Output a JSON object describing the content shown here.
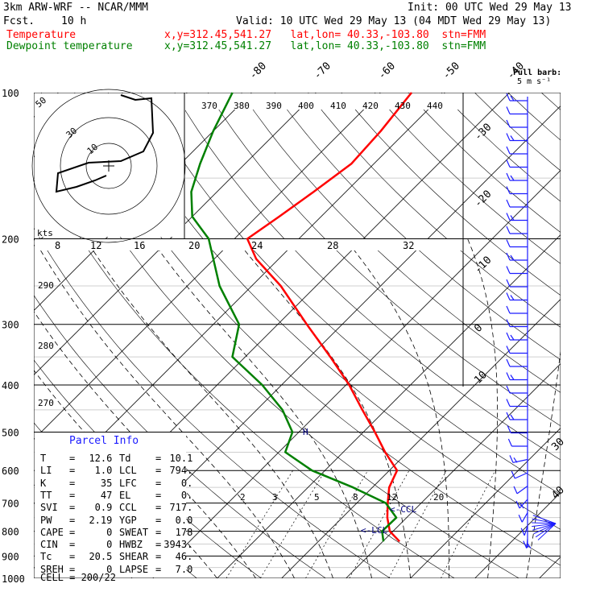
{
  "header": {
    "model": "3km ARW-WRF -- NCAR/MMM",
    "fcst_label": "Fcst.",
    "fcst_value": "10 h",
    "init": "Init: 00 UTC Wed 29 May 13",
    "valid": "Valid: 10 UTC Wed 29 May 13 (04 MDT Wed 29 May 13)",
    "temp_label": "Temperature",
    "dew_label": "Dewpoint temperature",
    "temp_loc": "x,y=312.45,541.27   lat,lon= 40.33,-103.80  stn=FMM",
    "dew_loc": "x,y=312.45,541.27   lat,lon= 40.33,-103.80  stn=FMM"
  },
  "barb_legend": {
    "line1": "Full barb:",
    "line2": "5 m s⁻¹"
  },
  "parcel": {
    "title": "Parcel Info",
    "rows": [
      {
        "l1": "T",
        "v1": "12.6",
        "l2": "Td",
        "v2": "10.1"
      },
      {
        "l1": "LI",
        "v1": "1.0",
        "l2": "LCL",
        "v2": "794."
      },
      {
        "l1": "K",
        "v1": "35",
        "l2": "LFC",
        "v2": "0."
      },
      {
        "l1": "TT",
        "v1": "47",
        "l2": "EL",
        "v2": "0."
      },
      {
        "l1": "SVI",
        "v1": "0.9",
        "l2": "CCL",
        "v2": "717."
      },
      {
        "l1": "PW",
        "v1": "2.19",
        "l2": "YGP",
        "v2": "0.0"
      },
      {
        "l1": "CAPE",
        "v1": "0",
        "l2": "SWEAT",
        "v2": "178"
      },
      {
        "l1": "CIN",
        "v1": "0",
        "l2": "HWBZ",
        "v2": "3943."
      },
      {
        "l1": "Tc",
        "v1": "20.5",
        "l2": "SHEAR",
        "v2": "46."
      },
      {
        "l1": "SREH",
        "v1": "0",
        "l2": "LAPSE",
        "v2": "7.0"
      }
    ],
    "cell": "CELL = 200/22"
  },
  "chart_data": {
    "type": "line",
    "ylabel": "",
    "xlabel": "",
    "yscale": "log",
    "pressure_ticks": [
      100,
      200,
      300,
      400,
      500,
      600,
      700,
      800,
      900,
      1000
    ],
    "ylim": [
      1000,
      100
    ],
    "isotherm_labels": [
      -80,
      -70,
      -60,
      -50,
      -40,
      -30,
      -20,
      -10,
      0,
      10,
      20,
      30,
      40
    ],
    "theta_labels": [
      370,
      380,
      390,
      400,
      410,
      420,
      430,
      440
    ],
    "thetae_labels": [
      290,
      280,
      270
    ],
    "mixing_ratio_upper_labels": [
      "8",
      "12",
      "16",
      "20",
      "24",
      "28",
      "32"
    ],
    "mixing_ratio_lower_labels": [
      "2",
      "3",
      "5",
      "8",
      "12",
      "20"
    ],
    "hodograph": {
      "units_label": "kts",
      "ring_labels": [
        "10",
        "30",
        "50"
      ]
    },
    "annotations": [
      "CCL",
      "LCL",
      "H"
    ],
    "series": [
      {
        "name": "Temperature",
        "color": "#ff0000",
        "points": [
          [
            840,
            12.6
          ],
          [
            800,
            9.5
          ],
          [
            750,
            7.0
          ],
          [
            700,
            4.8
          ],
          [
            650,
            2.6
          ],
          [
            600,
            1.2
          ],
          [
            550,
            -3.5
          ],
          [
            500,
            -8.2
          ],
          [
            450,
            -13.6
          ],
          [
            400,
            -19.5
          ],
          [
            350,
            -26.8
          ],
          [
            300,
            -35.5
          ],
          [
            250,
            -45.5
          ],
          [
            220,
            -53.5
          ],
          [
            200,
            -58
          ],
          [
            180,
            -56.5
          ],
          [
            160,
            -55
          ],
          [
            140,
            -53.5
          ],
          [
            120,
            -54
          ],
          [
            100,
            -55.2
          ]
        ]
      },
      {
        "name": "Dewpoint temperature",
        "color": "#008000",
        "points": [
          [
            840,
            10.1
          ],
          [
            800,
            8.3
          ],
          [
            750,
            8.4
          ],
          [
            700,
            4.5
          ],
          [
            650,
            -3
          ],
          [
            600,
            -12
          ],
          [
            550,
            -19
          ],
          [
            500,
            -21
          ],
          [
            450,
            -26
          ],
          [
            400,
            -33
          ],
          [
            350,
            -42
          ],
          [
            300,
            -46
          ],
          [
            250,
            -55
          ],
          [
            200,
            -64
          ],
          [
            180,
            -70
          ],
          [
            160,
            -74
          ],
          [
            140,
            -77
          ],
          [
            120,
            -80
          ],
          [
            100,
            -83
          ]
        ]
      }
    ]
  }
}
